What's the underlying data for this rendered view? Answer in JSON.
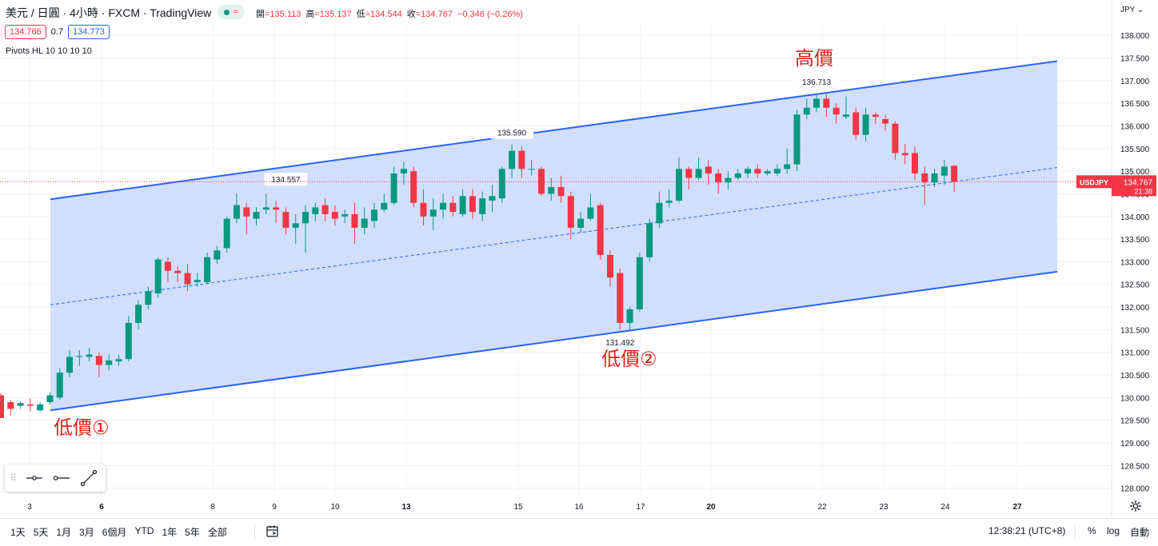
{
  "header": {
    "symbol_title": "美元 / 日圓 · 4小時 · FXCM · TradingView",
    "ohlc": [
      {
        "label": "開",
        "value": "=135.113"
      },
      {
        "label": "高",
        "value": "=135.137"
      },
      {
        "label": "低",
        "value": "=134.544"
      },
      {
        "label": "收",
        "value": "=134.767"
      },
      {
        "label": "",
        "value": "−0.346 (−0.26%)"
      }
    ],
    "sell_price": "134.766",
    "spread": "0.7",
    "buy_price": "134.773",
    "indicator": "Pivots HL 10 10 10 10",
    "currency": "JPY"
  },
  "annotations": {
    "low1": "低價①",
    "low2": "低價②",
    "high": "高價"
  },
  "price_tag": {
    "symbol": "USDJPY",
    "price": "134.767",
    "countdown": "21:38"
  },
  "colors": {
    "up": "#089981",
    "down": "#f23645",
    "channel_line": "#2962ff",
    "channel_fill": "#c9d9fb",
    "annotation": "#e2221c"
  },
  "chart_data": {
    "type": "candlestick",
    "y_range": [
      127.8,
      138.25
    ],
    "y_ticks": [
      "128.000",
      "128.500",
      "129.000",
      "129.500",
      "130.000",
      "130.500",
      "131.000",
      "131.500",
      "132.000",
      "132.500",
      "133.000",
      "133.500",
      "134.000",
      "134.500",
      "135.000",
      "135.500",
      "136.000",
      "136.500",
      "137.000",
      "137.500",
      "138.000"
    ],
    "x_ticks": [
      "3",
      "6",
      "8",
      "9",
      "10",
      "13",
      "15",
      "16",
      "17",
      "20",
      "22",
      "23",
      "24",
      "27"
    ],
    "pivot_labels": [
      "134.557",
      "135.590",
      "131.492",
      "136.713"
    ],
    "channel": {
      "upper": [
        [
          0,
          134.38
        ],
        [
          105,
          137.43
        ]
      ],
      "lower": [
        [
          0,
          129.72
        ],
        [
          105,
          132.78
        ]
      ],
      "mid_dashed": [
        [
          0,
          132.05
        ],
        [
          105,
          135.08
        ]
      ]
    },
    "current_price": 134.767,
    "candles": [
      [
        130.05,
        129.55,
        130.1,
        129.55
      ],
      [
        129.9,
        129.75,
        129.95,
        129.6
      ],
      [
        129.82,
        129.88,
        129.92,
        129.75
      ],
      [
        129.85,
        129.82,
        129.98,
        129.7
      ],
      [
        129.72,
        129.85,
        129.9,
        129.68
      ],
      [
        129.9,
        130.05,
        130.12,
        129.85
      ],
      [
        130.0,
        130.55,
        130.65,
        129.95
      ],
      [
        130.55,
        130.9,
        131.05,
        130.45
      ],
      [
        130.9,
        130.92,
        131.05,
        130.7
      ],
      [
        130.9,
        130.95,
        131.1,
        130.8
      ],
      [
        130.92,
        130.72,
        131.0,
        130.45
      ],
      [
        130.72,
        130.82,
        130.95,
        130.6
      ],
      [
        130.8,
        130.85,
        130.95,
        130.7
      ],
      [
        130.85,
        131.65,
        131.8,
        130.8
      ],
      [
        131.65,
        132.05,
        132.15,
        131.5
      ],
      [
        132.05,
        132.35,
        132.45,
        131.95
      ],
      [
        132.3,
        133.05,
        133.1,
        132.2
      ],
      [
        133.0,
        132.8,
        133.1,
        132.55
      ],
      [
        132.8,
        132.75,
        132.9,
        132.55
      ],
      [
        132.75,
        132.5,
        132.95,
        132.35
      ],
      [
        132.55,
        132.6,
        132.75,
        132.45
      ],
      [
        132.55,
        133.1,
        133.2,
        132.5
      ],
      [
        133.05,
        133.25,
        133.35,
        132.95
      ],
      [
        133.3,
        133.95,
        134.0,
        133.2
      ],
      [
        133.95,
        134.25,
        134.5,
        133.85
      ],
      [
        134.2,
        134.0,
        134.3,
        133.6
      ],
      [
        133.95,
        134.1,
        134.2,
        133.8
      ],
      [
        134.15,
        134.2,
        134.5,
        134.05
      ],
      [
        134.2,
        134.15,
        134.35,
        133.85
      ],
      [
        134.1,
        133.75,
        134.2,
        133.6
      ],
      [
        133.75,
        133.85,
        134.05,
        133.4
      ],
      [
        133.85,
        134.1,
        134.25,
        133.2
      ],
      [
        134.05,
        134.2,
        134.3,
        133.9
      ],
      [
        134.25,
        134.05,
        134.4,
        133.9
      ],
      [
        134.1,
        133.95,
        134.25,
        133.8
      ],
      [
        134.0,
        134.05,
        134.15,
        133.85
      ],
      [
        134.05,
        133.75,
        134.3,
        133.4
      ],
      [
        133.75,
        133.95,
        134.2,
        133.6
      ],
      [
        133.9,
        134.15,
        134.3,
        133.75
      ],
      [
        134.15,
        134.3,
        134.5,
        134.1
      ],
      [
        134.3,
        134.95,
        135.1,
        134.25
      ],
      [
        134.95,
        135.05,
        135.2,
        134.7
      ],
      [
        135.0,
        134.3,
        135.1,
        134.2
      ],
      [
        134.3,
        134.0,
        134.6,
        133.8
      ],
      [
        134.0,
        134.15,
        134.4,
        133.7
      ],
      [
        134.15,
        134.3,
        134.5,
        133.95
      ],
      [
        134.3,
        134.1,
        134.45,
        134.0
      ],
      [
        134.05,
        134.45,
        134.6,
        134.0
      ],
      [
        134.45,
        134.1,
        134.6,
        133.95
      ],
      [
        134.05,
        134.4,
        134.55,
        133.9
      ],
      [
        134.35,
        134.45,
        134.7,
        134.1
      ],
      [
        134.4,
        135.05,
        135.1,
        134.3
      ],
      [
        135.05,
        135.45,
        135.59,
        134.85
      ],
      [
        135.45,
        135.05,
        135.55,
        134.85
      ],
      [
        135.05,
        135.05,
        135.25,
        134.9
      ],
      [
        135.05,
        134.5,
        135.1,
        134.45
      ],
      [
        134.5,
        134.65,
        134.85,
        134.35
      ],
      [
        134.65,
        134.45,
        134.9,
        134.3
      ],
      [
        134.45,
        133.75,
        134.55,
        133.5
      ],
      [
        133.75,
        133.95,
        134.1,
        133.65
      ],
      [
        133.95,
        134.2,
        134.5,
        133.9
      ],
      [
        134.25,
        133.15,
        134.3,
        133.05
      ],
      [
        133.15,
        132.65,
        133.25,
        132.45
      ],
      [
        132.75,
        131.65,
        132.85,
        131.49
      ],
      [
        131.65,
        131.95,
        132.0,
        131.5
      ],
      [
        131.95,
        133.1,
        133.2,
        131.9
      ],
      [
        133.1,
        133.85,
        133.95,
        133.0
      ],
      [
        133.85,
        134.3,
        134.55,
        133.75
      ],
      [
        134.3,
        134.35,
        134.6,
        134.2
      ],
      [
        134.35,
        135.05,
        135.3,
        134.3
      ],
      [
        135.05,
        134.85,
        135.1,
        134.6
      ],
      [
        134.85,
        135.05,
        135.3,
        134.8
      ],
      [
        135.1,
        134.95,
        135.25,
        134.7
      ],
      [
        134.95,
        134.75,
        135.05,
        134.5
      ],
      [
        134.75,
        134.85,
        135.0,
        134.6
      ],
      [
        134.85,
        134.95,
        135.05,
        134.8
      ],
      [
        134.95,
        135.05,
        135.1,
        134.85
      ],
      [
        135.05,
        134.95,
        135.15,
        134.85
      ],
      [
        134.95,
        135.0,
        135.05,
        134.9
      ],
      [
        134.95,
        135.05,
        135.15,
        134.9
      ],
      [
        135.05,
        135.15,
        135.5,
        134.95
      ],
      [
        135.15,
        136.25,
        136.35,
        135.0
      ],
      [
        136.25,
        136.4,
        136.6,
        136.15
      ],
      [
        136.4,
        136.6,
        136.71,
        136.3
      ],
      [
        136.6,
        136.4,
        136.7,
        136.2
      ],
      [
        136.4,
        136.25,
        136.5,
        136.05
      ],
      [
        136.2,
        136.25,
        136.65,
        136.15
      ],
      [
        136.3,
        135.8,
        136.4,
        135.7
      ],
      [
        135.8,
        136.25,
        136.4,
        135.65
      ],
      [
        136.25,
        136.2,
        136.3,
        136.05
      ],
      [
        136.15,
        136.05,
        136.25,
        135.9
      ],
      [
        136.05,
        135.4,
        136.1,
        135.25
      ],
      [
        135.4,
        135.35,
        135.6,
        135.15
      ],
      [
        135.4,
        134.95,
        135.55,
        134.8
      ],
      [
        134.95,
        134.75,
        135.1,
        134.25
      ],
      [
        134.75,
        134.95,
        135.05,
        134.65
      ],
      [
        134.9,
        135.1,
        135.25,
        134.7
      ],
      [
        135.12,
        134.77,
        135.14,
        134.54
      ]
    ]
  },
  "drawing_toolbar": {
    "tools": [
      "horizontal-ray-tool",
      "horizontal-line-tool",
      "trend-line-tool"
    ]
  },
  "bottom_bar": {
    "ranges": [
      "1天",
      "5天",
      "1月",
      "3月",
      "6個月",
      "YTD",
      "1年",
      "5年",
      "全部"
    ],
    "clock": "12:38:21 (UTC+8)",
    "percent": "%",
    "log": "log",
    "auto": "自動"
  }
}
